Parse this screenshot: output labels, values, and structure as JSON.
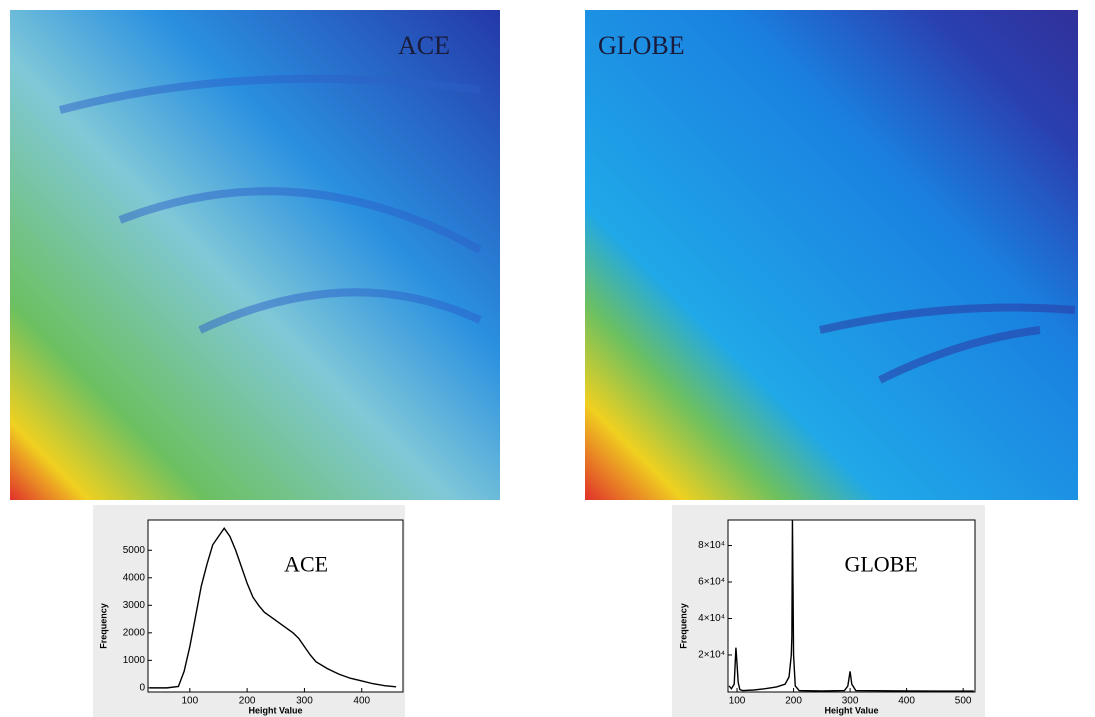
{
  "maps": [
    {
      "label": "ACE"
    },
    {
      "label": "GLOBE"
    }
  ],
  "chart_data": [
    {
      "type": "line",
      "annotation": "ACE",
      "x_label": "Height Value",
      "y_label": "Frequency",
      "xlim": [
        27,
        472
      ],
      "ylim": [
        -150,
        6100
      ],
      "xticks": [
        100,
        200,
        300,
        400
      ],
      "yticks": [
        0,
        1000,
        2000,
        3000,
        4000,
        5000
      ],
      "color": "#000000",
      "x": [
        30,
        60,
        80,
        90,
        100,
        110,
        120,
        130,
        140,
        150,
        160,
        170,
        180,
        190,
        200,
        210,
        220,
        230,
        240,
        250,
        260,
        270,
        280,
        290,
        300,
        310,
        320,
        340,
        360,
        380,
        400,
        420,
        440,
        460
      ],
      "values": [
        0,
        0,
        50,
        600,
        1500,
        2600,
        3700,
        4500,
        5200,
        5500,
        5800,
        5500,
        5000,
        4400,
        3800,
        3300,
        3000,
        2750,
        2600,
        2450,
        2300,
        2150,
        2000,
        1800,
        1500,
        1200,
        950,
        700,
        500,
        350,
        250,
        150,
        80,
        40
      ]
    },
    {
      "type": "line",
      "annotation": "GLOBE",
      "x_label": "Height Value",
      "y_label": "Frequency",
      "xlim": [
        84,
        521
      ],
      "ylim": [
        -300,
        94000
      ],
      "xticks": [
        100,
        200,
        300,
        400,
        500
      ],
      "yticks": [
        {
          "value": 20000,
          "label": "2×10⁴"
        },
        {
          "value": 40000,
          "label": "4×10⁴"
        },
        {
          "value": 60000,
          "label": "6×10⁴"
        },
        {
          "value": 80000,
          "label": "8×10⁴"
        }
      ],
      "color": "#000000",
      "x": [
        86,
        90,
        95,
        98,
        100,
        102,
        105,
        110,
        130,
        150,
        170,
        185,
        192,
        196,
        197,
        198,
        199,
        200,
        203,
        210,
        250,
        290,
        296,
        300,
        303,
        310,
        400,
        450,
        519
      ],
      "values": [
        3000,
        1500,
        4000,
        24000,
        15000,
        5000,
        1000,
        500,
        800,
        1500,
        2500,
        4000,
        8000,
        20000,
        30000,
        94000,
        58000,
        20000,
        3000,
        500,
        300,
        500,
        3000,
        11000,
        4000,
        500,
        300,
        200,
        200
      ]
    }
  ]
}
